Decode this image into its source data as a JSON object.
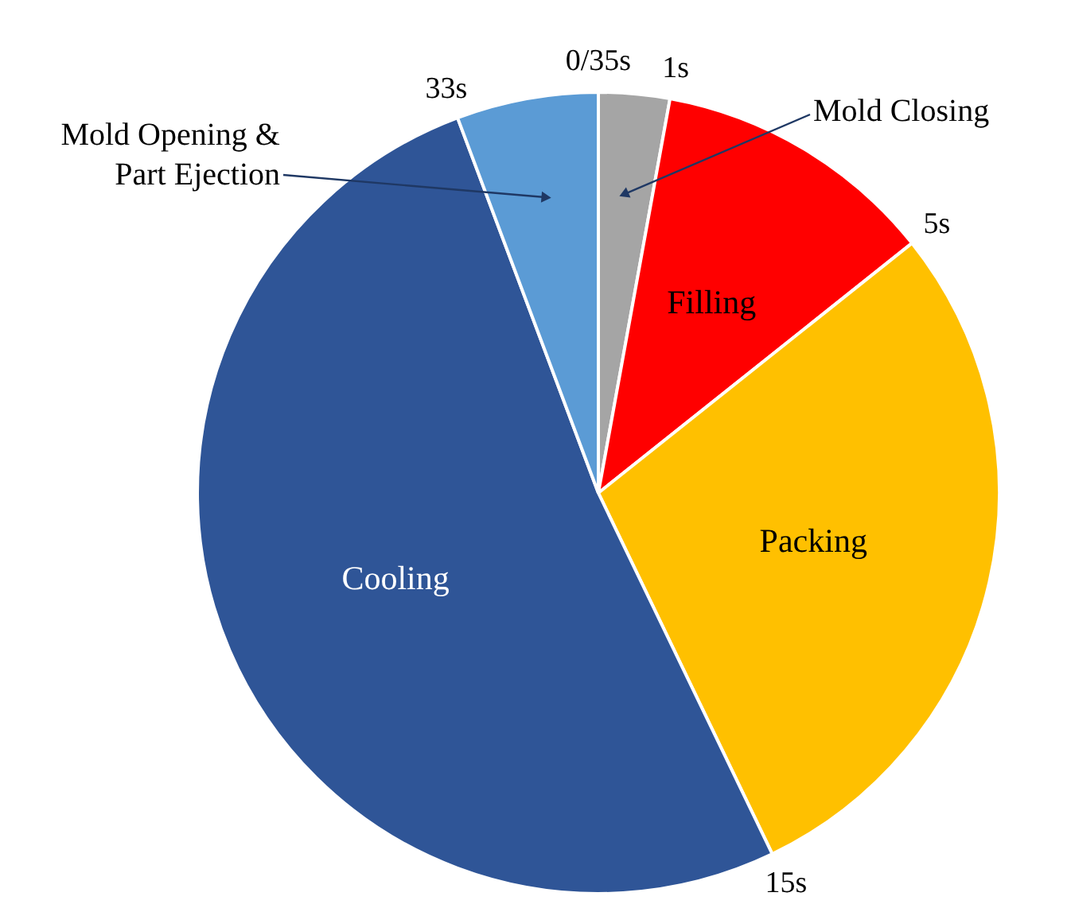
{
  "chart_data": {
    "type": "pie",
    "categories": [
      "Mold Closing",
      "Filling",
      "Packing",
      "Cooling",
      "Mold Opening & Part Ejection"
    ],
    "values": [
      2.86,
      11.43,
      28.57,
      51.43,
      5.71
    ],
    "colors": [
      "#a5a5a5",
      "#ff0000",
      "#ffc000",
      "#2f5597",
      "#5b9bd5"
    ],
    "annotations": [
      "0/35s",
      "1s",
      "5s",
      "15s",
      "33s"
    ]
  }
}
